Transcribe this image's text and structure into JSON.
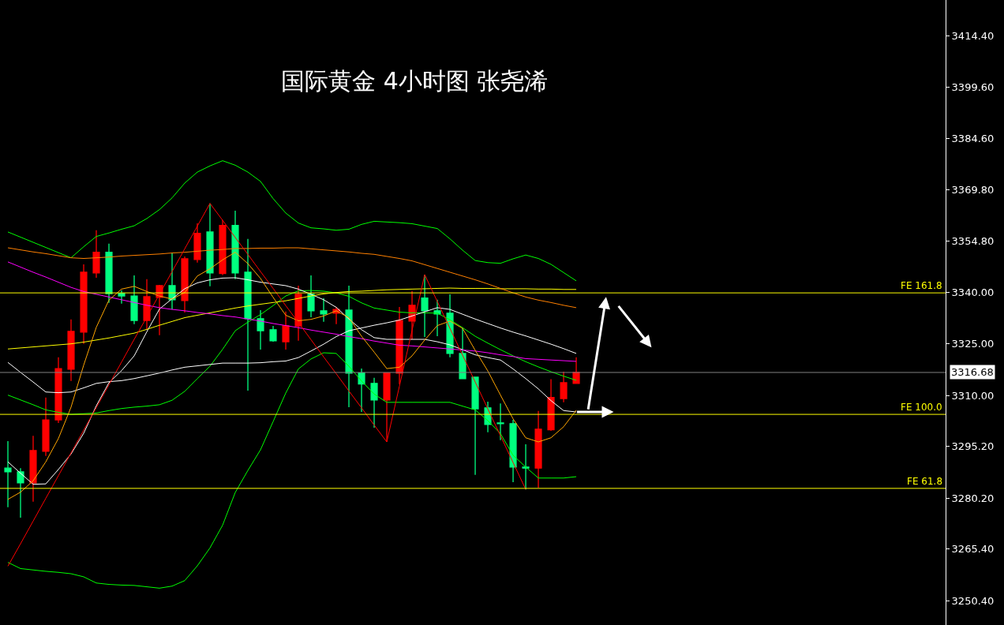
{
  "chart_data": {
    "type": "candlestick",
    "title": "国际黄金 4小时图 张尧浠",
    "categories": [
      null,
      null,
      null,
      null,
      null,
      null,
      null,
      null,
      null,
      null,
      null,
      null,
      null,
      null,
      null,
      null,
      null,
      null,
      null,
      null,
      null,
      null,
      null,
      null,
      null,
      null,
      null,
      null,
      null,
      null,
      null,
      null,
      null,
      null,
      null,
      null,
      null,
      null,
      null,
      null,
      null,
      null,
      null,
      null,
      null,
      null
    ],
    "ohlc": [
      [
        3288.9,
        3296.7,
        3277.5,
        3287.8
      ],
      [
        3287.8,
        3288.9,
        3274.5,
        3284.6
      ],
      [
        3284.6,
        3298.3,
        3279.1,
        3294.0
      ],
      [
        3293.8,
        3309.4,
        3292.4,
        3302.9
      ],
      [
        3302.9,
        3321.1,
        3302.0,
        3317.8
      ],
      [
        3317.6,
        3332.1,
        3314.2,
        3328.6
      ],
      [
        3328.4,
        3348.1,
        3325.0,
        3345.8
      ],
      [
        3345.6,
        3358.0,
        3344.2,
        3351.6
      ],
      [
        3351.6,
        3354.1,
        3336.9,
        3339.6
      ],
      [
        3339.6,
        3340.5,
        3336.7,
        3338.9
      ],
      [
        3338.9,
        3344.9,
        3330.7,
        3331.8
      ],
      [
        3331.8,
        3343.8,
        3329.3,
        3338.7
      ],
      [
        3338.5,
        3342.1,
        3327.5,
        3341.9
      ],
      [
        3341.9,
        3351.3,
        3335.0,
        3337.8
      ],
      [
        3337.6,
        3350.4,
        3334.1,
        3349.7
      ],
      [
        3349.5,
        3360.0,
        3348.6,
        3357.1
      ],
      [
        3357.5,
        3365.8,
        3341.7,
        3345.6
      ],
      [
        3345.4,
        3361.0,
        3345.0,
        3359.4
      ],
      [
        3359.4,
        3363.7,
        3343.8,
        3345.6
      ],
      [
        3345.8,
        3355.5,
        3311.4,
        3332.3
      ],
      [
        3332.3,
        3334.8,
        3323.3,
        3328.8
      ],
      [
        3329.1,
        3330.2,
        3325.6,
        3325.9
      ],
      [
        3325.6,
        3334.4,
        3323.3,
        3330.2
      ],
      [
        3330.2,
        3341.9,
        3325.9,
        3339.4
      ],
      [
        3339.4,
        3344.9,
        3332.7,
        3334.6
      ],
      [
        3334.6,
        3338.3,
        3331.4,
        3333.7
      ],
      [
        3333.9,
        3335.7,
        3330.7,
        3335.0
      ],
      [
        3334.8,
        3341.9,
        3306.6,
        3316.5
      ],
      [
        3316.5,
        3317.8,
        3305.2,
        3313.3
      ],
      [
        3313.5,
        3315.1,
        3300.6,
        3308.7
      ],
      [
        3308.7,
        3316.7,
        3296.5,
        3316.5
      ],
      [
        3316.5,
        3335.7,
        3313.3,
        3331.8
      ],
      [
        3331.6,
        3340.3,
        3326.3,
        3336.2
      ],
      [
        3338.3,
        3345.1,
        3327.0,
        3334.6
      ],
      [
        3334.6,
        3337.8,
        3327.2,
        3333.7
      ],
      [
        3333.9,
        3339.4,
        3321.1,
        3322.2
      ],
      [
        3322.2,
        3329.5,
        3314.7,
        3314.9
      ],
      [
        3315.3,
        3315.3,
        3286.9,
        3306.1
      ],
      [
        3306.4,
        3308.2,
        3299.3,
        3301.6
      ],
      [
        3302.0,
        3307.7,
        3297.0,
        3301.8
      ],
      [
        3301.8,
        3302.9,
        3284.8,
        3289.2
      ],
      [
        3289.2,
        3295.8,
        3282.7,
        3288.9
      ],
      [
        3288.9,
        3305.5,
        3283.2,
        3300.2
      ],
      [
        3300.0,
        3314.7,
        3299.7,
        3309.4
      ],
      [
        3309.1,
        3316.9,
        3308.0,
        3313.7
      ],
      [
        3313.5,
        3321.1,
        3313.5,
        3316.68
      ]
    ],
    "colors": [
      "#00ff80",
      "#00ff80",
      "#ff0000",
      "#ff0000",
      "#ff0000",
      "#ff0000",
      "#ff0000",
      "#ff0000",
      "#00ff80",
      "#00ff80",
      "#00ff80",
      "#ff0000",
      "#ff0000",
      "#00ff80",
      "#ff0000",
      "#ff0000",
      "#00ff80",
      "#ff0000",
      "#00ff80",
      "#00ff80",
      "#00ff80",
      "#00ff80",
      "#ff0000",
      "#ff0000",
      "#00ff80",
      "#00ff80",
      "#ff0000",
      "#00ff80",
      "#00ff80",
      "#00ff80",
      "#ff0000",
      "#ff0000",
      "#ff0000",
      "#00ff80",
      "#00ff80",
      "#00ff80",
      "#00ff80",
      "#00ff80",
      "#00ff80",
      "#00ff80",
      "#00ff80",
      "#00ff80",
      "#ff0000",
      "#ff0000",
      "#ff0000",
      "#ff0000"
    ],
    "series": [
      {
        "type": "line",
        "color": "#00ff00",
        "values": [
          3357.5,
          3356,
          3354.5,
          3353,
          3351.5,
          3350,
          3353.2,
          3356.2,
          3357.2,
          3358.3,
          3359.3,
          3361.4,
          3364,
          3367.4,
          3371.7,
          3374.9,
          3376.7,
          3378.2,
          3376.9,
          3374.9,
          3372.2,
          3367.2,
          3363,
          3360.1,
          3358.7,
          3358.4,
          3358,
          3358.3,
          3359.7,
          3360.6,
          3360.4,
          3360.2,
          3359.9,
          3359.2,
          3358.5,
          3355.5,
          3352.2,
          3349.2,
          3348.6,
          3348.4,
          3349.7,
          3350.8,
          3349.8,
          3348.1,
          3345.7,
          3343.3
        ]
      },
      {
        "type": "line",
        "color": "#00ff00",
        "values": [
          3261.5,
          3259.7,
          3259.3,
          3258.9,
          3258.6,
          3258.2,
          3257.3,
          3255.5,
          3255.1,
          3254.9,
          3254.8,
          3254.4,
          3254,
          3254.6,
          3256.2,
          3260.5,
          3265.7,
          3272.3,
          3281.8,
          3288.2,
          3294.2,
          3302.4,
          3310.7,
          3317.7,
          3320.6,
          3322.4,
          3322.2,
          3318.5,
          3314.2,
          3310.4,
          3308,
          3308,
          3308,
          3308,
          3308,
          3308,
          3306.9,
          3305.8,
          3302.7,
          3298.9,
          3292.6,
          3289.2,
          3286,
          3286,
          3286,
          3286.4
        ]
      },
      {
        "type": "line",
        "color": "#00ff00",
        "values": [
          3310.1,
          3308.7,
          3307.3,
          3305.8,
          3305.1,
          3304.5,
          3304.7,
          3304.9,
          3305.6,
          3306.2,
          3306.6,
          3306.9,
          3307.3,
          3308.6,
          3311.2,
          3314.9,
          3318.5,
          3323.4,
          3328.8,
          3331.3,
          3333.5,
          3336.1,
          3338.9,
          3340.4,
          3340.5,
          3340.3,
          3339.8,
          3338.8,
          3336.9,
          3335.4,
          3334.8,
          3334.2,
          3334,
          3334,
          3333.9,
          3332,
          3329.7,
          3327.2,
          3325.2,
          3323.3,
          3321.5,
          3319.8,
          3318.3,
          3316.9,
          3315.6,
          3314.4
        ]
      },
      {
        "type": "line",
        "color": "#ffffff",
        "values": [
          3319.6,
          3316.7,
          3313.9,
          3311,
          3310.8,
          3311,
          3312.2,
          3313.5,
          3314,
          3314.3,
          3314.9,
          3315.7,
          3316.5,
          3317.4,
          3318.2,
          3318.6,
          3319,
          3319.4,
          3319.4,
          3319.4,
          3319.5,
          3319.8,
          3320,
          3321,
          3322.9,
          3324.9,
          3327.1,
          3328.8,
          3329.6,
          3330.4,
          3331.1,
          3331.9,
          3333.1,
          3334.3,
          3335.5,
          3335,
          3333.6,
          3332.2,
          3330.9,
          3329.6,
          3328.4,
          3327.3,
          3326.1,
          3324.9,
          3323.6,
          3322.2
        ]
      },
      {
        "type": "line",
        "color": "#ffffff",
        "values": [
          3290.7,
          3287.4,
          3284.2,
          3284.3,
          3288.5,
          3293,
          3299,
          3307,
          3313.7,
          3317.2,
          3321.5,
          3328.5,
          3335.1,
          3338.1,
          3341,
          3342.7,
          3343.6,
          3344.1,
          3344.2,
          3343.6,
          3342.9,
          3342.4,
          3341.9,
          3340.9,
          3339.4,
          3337.8,
          3335.6,
          3332.2,
          3329.1,
          3326.8,
          3326.3,
          3326.3,
          3326.3,
          3326.3,
          3325.6,
          3324.7,
          3323.3,
          3321.8,
          3321,
          3320.3,
          3317.7,
          3314.9,
          3311.9,
          3308.5,
          3305.6,
          3305.2
        ]
      },
      {
        "type": "line",
        "color": "#ffff00",
        "values": [
          3323.5,
          3323.8,
          3324.1,
          3324.4,
          3324.7,
          3325,
          3325.5,
          3326.1,
          3326.7,
          3327.4,
          3328.1,
          3329.2,
          3330.4,
          3331.5,
          3332.6,
          3333.3,
          3334,
          3334.7,
          3335.4,
          3336,
          3336.5,
          3337,
          3337.5,
          3338.2,
          3338.9,
          3339.5,
          3339.9,
          3340.2,
          3340.3,
          3340.5,
          3340.7,
          3340.8,
          3340.9,
          3341,
          3341.1,
          3341.2,
          3341.1,
          3341.1,
          3341.1,
          3341,
          3341,
          3341,
          3340.9,
          3340.9,
          3340.8,
          3340.8
        ]
      },
      {
        "type": "line",
        "color": "#ff00ff",
        "values": [
          3348.8,
          3347.3,
          3345.8,
          3344.4,
          3342.9,
          3341.4,
          3340.2,
          3339.4,
          3338.6,
          3337.8,
          3337,
          3336.2,
          3335.5,
          3335,
          3334.6,
          3334.1,
          3333.7,
          3333.2,
          3332.8,
          3332.2,
          3331.6,
          3330.9,
          3330.3,
          3329.7,
          3329,
          3328.4,
          3327.8,
          3327.1,
          3326.5,
          3325.8,
          3325.2,
          3324.6,
          3324.4,
          3324.1,
          3323.8,
          3323.5,
          3323.2,
          3322.9,
          3322.4,
          3321.8,
          3321.3,
          3320.7,
          3320.5,
          3320.3,
          3320.1,
          3319.9
        ]
      },
      {
        "type": "line",
        "color": "#ff8000",
        "values": [
          3352.9,
          3352.3,
          3351.7,
          3351.2,
          3350.6,
          3350,
          3349.8,
          3350,
          3350.2,
          3350.5,
          3350.7,
          3350.9,
          3351.1,
          3351.4,
          3351.6,
          3351.9,
          3352.2,
          3352.4,
          3352.7,
          3352.7,
          3352.8,
          3352.8,
          3352.9,
          3352.9,
          3352.6,
          3352.3,
          3352,
          3351.7,
          3351.3,
          3351,
          3350.4,
          3349.8,
          3349.1,
          3348,
          3346.9,
          3345.8,
          3344.7,
          3343.6,
          3342.4,
          3341.1,
          3339.8,
          3338.6,
          3337.7,
          3337,
          3336.2,
          3335.5
        ]
      },
      {
        "type": "line",
        "color": "#ffa500",
        "values": [
          3279.8,
          3281.9,
          3285.2,
          3290.7,
          3297.5,
          3306.6,
          3318.8,
          3329.8,
          3337.7,
          3340.9,
          3341.7,
          3340.2,
          3338.9,
          3338.0,
          3339.9,
          3344.7,
          3346.8,
          3349.4,
          3351.6,
          3348.3,
          3344.0,
          3338.5,
          3333.3,
          3331.7,
          3332.1,
          3333.1,
          3334.6,
          3332.6,
          3327.2,
          3322.6,
          3317.8,
          3318.2,
          3321.5,
          3326.1,
          3330.3,
          3331.6,
          3329.5,
          3323.1,
          3317.1,
          3310.1,
          3303.2,
          3297.7,
          3296.5,
          3297.7,
          3300.9,
          3305.7
        ]
      },
      {
        "type": "line",
        "color": "#ff0000",
        "values": [
          3260.4,
          3266.9,
          3273.5,
          3280.1,
          3286.7,
          3293.3,
          3299.9,
          3306.5,
          3313.1,
          3319.7,
          3326.3,
          3332.8,
          3339.4,
          3346.0,
          3352.6,
          3359.2,
          3365.8,
          3360.9,
          3355.9,
          3351.0,
          3346.0,
          3341.1,
          3336.1,
          3331.2,
          3326.2,
          3321.2,
          3316.3,
          3311.3,
          3306.4,
          3301.4,
          3296.5,
          3312.7,
          3328.9,
          3345.1,
          3337.3,
          3329.5,
          3321.7,
          3313.9,
          3306.1,
          3298.3,
          3290.5,
          3282.7,
          null,
          null,
          null,
          null
        ]
      }
    ],
    "ref_lines": [
      {
        "axis": "y",
        "value": 3339.8,
        "label": "FE 161.8",
        "color": "#ffff00"
      },
      {
        "axis": "y",
        "value": 3304.5,
        "label": "FE 100.0",
        "color": "#ffff00"
      },
      {
        "axis": "y",
        "value": 3283.0,
        "label": "FE 61.8",
        "color": "#ffff00"
      },
      {
        "axis": "y",
        "value": 3316.68,
        "color": "#808080"
      }
    ],
    "annotations": [
      "3316.68"
    ],
    "ylim": [
      3243.3,
      3424.9
    ],
    "yticks": [
      {
        "value": 3250.4,
        "label": "3250.40"
      },
      {
        "value": 3265.4,
        "label": "3265.40"
      },
      {
        "value": 3280.2,
        "label": "3280.20"
      },
      {
        "value": 3295.2,
        "label": "3295.20"
      },
      {
        "value": 3310.0,
        "label": "3310.00"
      },
      {
        "value": 3325.0,
        "label": "3325.00"
      },
      {
        "value": 3340.0,
        "label": "3340.00"
      },
      {
        "value": 3354.8,
        "label": "3354.80"
      },
      {
        "value": 3369.8,
        "label": "3369.80"
      },
      {
        "value": 3384.6,
        "label": "3384.60"
      },
      {
        "value": 3399.6,
        "label": "3399.60"
      },
      {
        "value": 3414.4,
        "label": "3414.40"
      }
    ],
    "tick_labels": "y",
    "grid": false
  }
}
